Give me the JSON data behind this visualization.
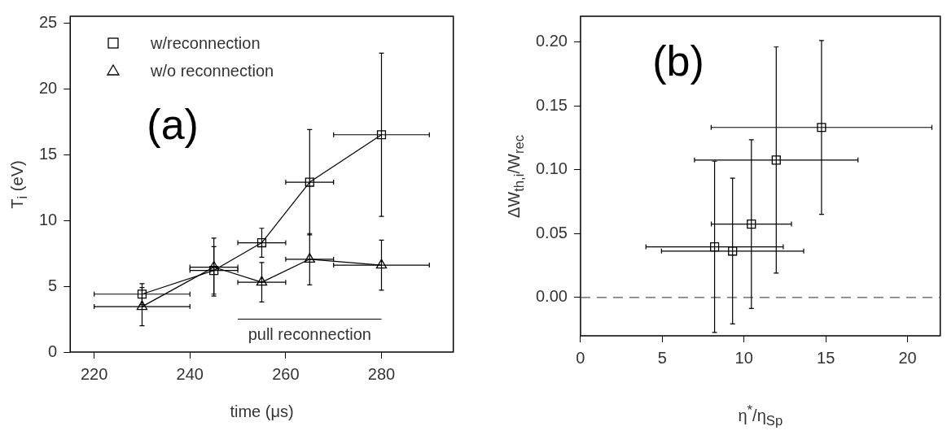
{
  "chart_data": [
    {
      "type": "line",
      "xlabel": "time (μs)",
      "ylabel": "T$_{i}$ (eV)",
      "x": [
        230,
        245,
        255,
        265,
        280
      ],
      "xlim": [
        215,
        295
      ],
      "ylim": [
        0,
        25.5
      ],
      "xticks": [
        220,
        240,
        260,
        280
      ],
      "yticks": [
        0,
        5,
        10,
        15,
        20,
        25
      ],
      "grid": false,
      "legend": "top left",
      "line_style": "solid",
      "series": [
        {
          "name": "w/reconnection",
          "color": "#000000",
          "marker": "square",
          "values": [
            4.4,
            6.2,
            8.3,
            12.9,
            16.5
          ],
          "errors": [
            0.8,
            1.8,
            1.1,
            4.0,
            6.2
          ],
          "xerrors": [
            10,
            5,
            5,
            5,
            10
          ]
        },
        {
          "name": "w/o reconnection",
          "color": "#000000",
          "marker": "triangle",
          "values": [
            3.45,
            6.45,
            5.3,
            7.05,
            6.6
          ],
          "errors": [
            1.45,
            2.2,
            1.5,
            1.95,
            1.9
          ],
          "xerrors": [
            10,
            5,
            5,
            5,
            10
          ]
        },
        {
          "color": "#000000",
          "marker": "none",
          "x": [
            250,
            280
          ],
          "values": [
            2.5,
            2.5
          ]
        }
      ],
      "annotations": [
        "(a)",
        {
          "text": "pull reconnection",
          "x": 265,
          "y": 2.5
        }
      ]
    },
    {
      "type": "scatter",
      "xlabel": "η$^{*}$/η$_{Sp}$",
      "ylabel": "ΔW$_{th,i}$/W$_{rec}$",
      "xlim": [
        0,
        22
      ],
      "ylim": [
        -0.03,
        0.22
      ],
      "xticks": [
        0,
        5,
        10,
        15,
        20
      ],
      "yticks": [
        {
          "value": 0,
          "label": "0.00"
        },
        {
          "value": 0.05,
          "label": "0.05"
        },
        {
          "value": 0.1,
          "label": "0.10"
        },
        {
          "value": 0.15,
          "label": "0.15"
        },
        {
          "value": 0.2,
          "label": "0.20"
        }
      ],
      "grid": false,
      "marker": "square",
      "series": [
        {
          "color": "#000000",
          "x": [
            8.2,
            9.3,
            10.45,
            11.97,
            14.74
          ],
          "values": [
            0.0396,
            0.0363,
            0.0574,
            0.1075,
            0.133
          ],
          "errors": [
            0.067,
            0.057,
            0.066,
            0.0885,
            0.068
          ],
          "xerrors": [
            4.2,
            4.35,
            2.45,
            5.0,
            6.75
          ]
        }
      ],
      "ref_lines": [
        {
          "axis": "y",
          "value": 0,
          "line_style": "dashed",
          "color": "#555555"
        }
      ],
      "annotations": [
        "(b)"
      ]
    }
  ]
}
